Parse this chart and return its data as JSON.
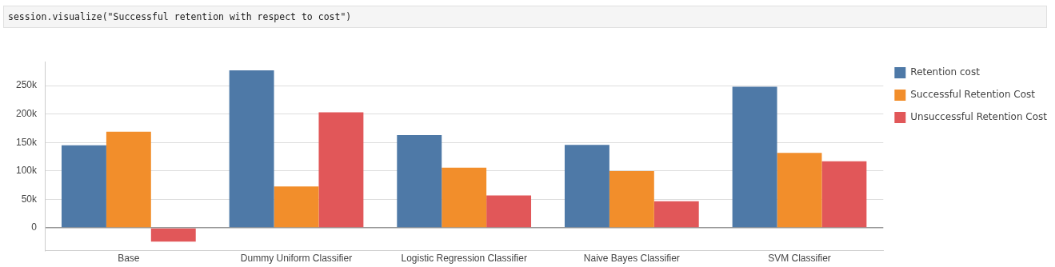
{
  "chart_data": {
    "type": "bar",
    "annotations": [
      "session.visualize(\"Successful retention with respect to cost\")"
    ],
    "categories": [
      "Base",
      "Dummy Uniform Classifier",
      "Logistic Regression Classifier",
      "Naive Bayes Classifier",
      "SVM Classifier"
    ],
    "series": [
      {
        "name": "Retention cost",
        "color": "#4e79a7",
        "values": [
          145000,
          277000,
          163000,
          146000,
          248000
        ]
      },
      {
        "name": "Successful Retention Cost",
        "color": "#f28e2b",
        "values": [
          169000,
          73000,
          106000,
          100000,
          132000
        ]
      },
      {
        "name": "Unsuccessful Retention Cost",
        "color": "#e15759",
        "values": [
          -24000,
          203000,
          57000,
          47000,
          117000
        ]
      }
    ],
    "ylim": [
      -40000,
      292000
    ],
    "yticks": [
      {
        "value": 0,
        "label": "0"
      },
      {
        "value": 50000,
        "label": "50k"
      },
      {
        "value": 100000,
        "label": "100k"
      },
      {
        "value": 150000,
        "label": "150k"
      },
      {
        "value": 200000,
        "label": "200k"
      },
      {
        "value": 250000,
        "label": "250k"
      }
    ],
    "grid": "y",
    "legend": "right"
  }
}
